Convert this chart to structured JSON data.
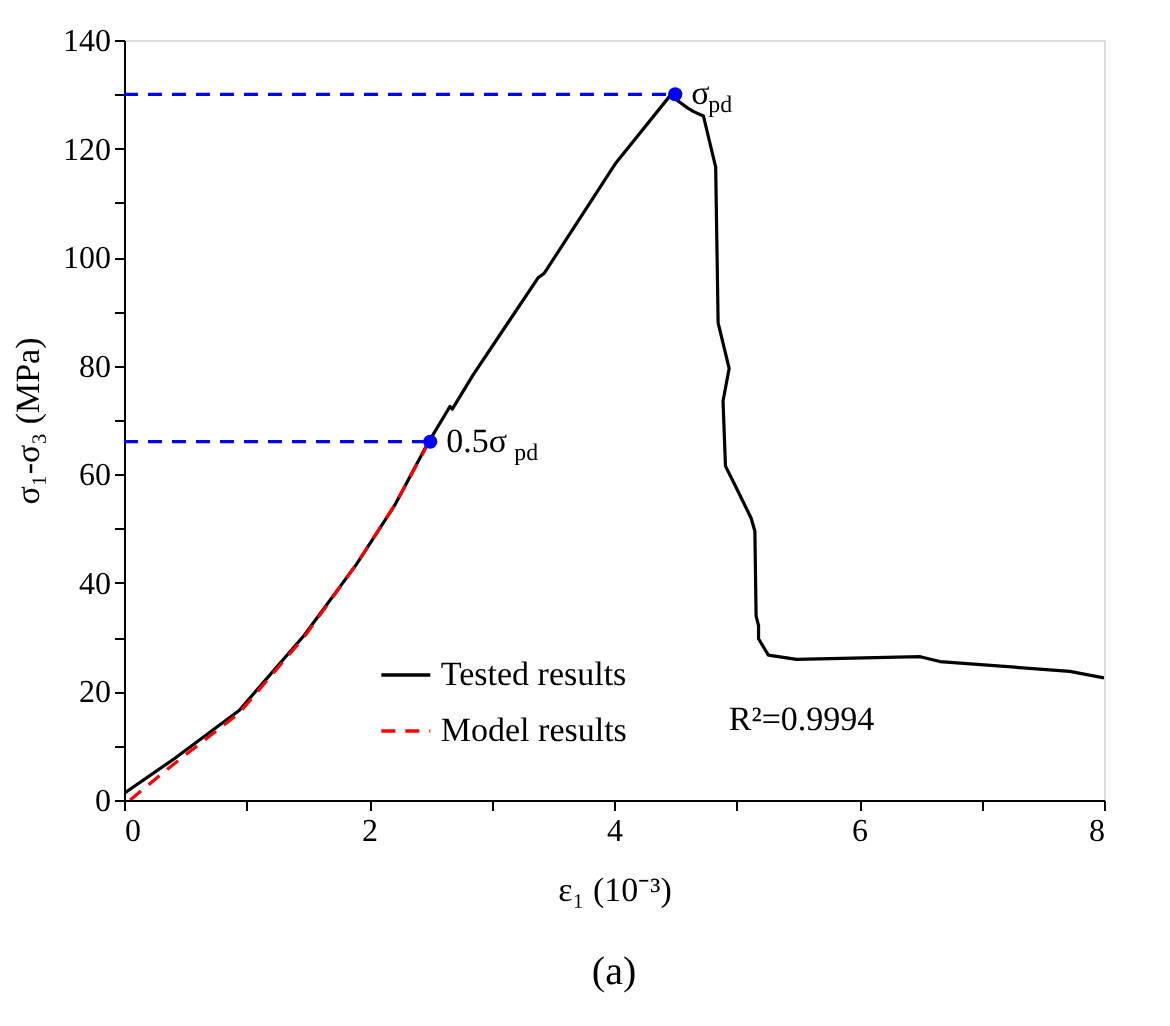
{
  "chart_data": {
    "type": "line",
    "xlabel": "ε₁ (10⁻³)",
    "ylabel": "σ₁-σ₃ (MPa)",
    "xlim": [
      0,
      8
    ],
    "xticks": [
      0,
      {
        "value": 1,
        "label": null
      },
      2,
      {
        "value": 3,
        "label": null
      },
      4,
      {
        "value": 5,
        "label": null
      },
      6,
      {
        "value": 7,
        "label": null
      },
      8
    ],
    "ylim": [
      0,
      140
    ],
    "yticks": [
      0,
      {
        "value": 10,
        "label": null
      },
      20,
      {
        "value": 30,
        "label": null
      },
      40,
      {
        "value": 50,
        "label": null
      },
      60,
      {
        "value": 70,
        "label": null
      },
      80,
      {
        "value": 90,
        "label": null
      },
      100,
      {
        "value": 110,
        "label": null
      },
      120,
      {
        "value": 130,
        "label": null
      },
      140
    ],
    "grid": false,
    "legend": "bottom",
    "series": [
      {
        "name": "Tested results",
        "color": "#000000",
        "line_style": "solid",
        "x": [
          0,
          0.41,
          0.94,
          1.47,
          1.9,
          2.21,
          2.48,
          2.64,
          2.66,
          2.68,
          2.85,
          3.38,
          3.43,
          4.01,
          4.46,
          4.54,
          4.6,
          4.65,
          4.73,
          4.83,
          4.85,
          4.94,
          4.89,
          4.91,
          4.99,
          5.12,
          5.15,
          5.16,
          5.18,
          5.18,
          5.26,
          5.49,
          6.5,
          6.66,
          7.72,
          8.0
        ],
        "values": [
          1.2,
          7.6,
          16.5,
          30.3,
          43.5,
          54.3,
          65.7,
          71.7,
          72.5,
          72.0,
          78.3,
          96.2,
          97.0,
          117.2,
          129.8,
          128.5,
          127.5,
          126.8,
          126.0,
          116.6,
          87.9,
          79.5,
          73.5,
          61.5,
          57.9,
          51.9,
          49.5,
          33.9,
          32.1,
          29.7,
          26.7,
          25.9,
          26.4,
          25.5,
          23.7,
          22.5
        ]
      },
      {
        "name": "Model results",
        "color": "#ff0000",
        "line_style": "dashed",
        "x": [
          0.05,
          0.4,
          0.94,
          1.47,
          1.9,
          2.21,
          2.48
        ],
        "values": [
          0,
          6.5,
          16,
          30,
          43.5,
          54.3,
          65.5
        ]
      },
      {
        "color": "#0000ff",
        "line_style": "dashed",
        "x": [
          0,
          4.5
        ],
        "values": [
          130,
          130
        ]
      },
      {
        "color": "#0000ff",
        "line_style": "dashed",
        "x": [
          0,
          2.5
        ],
        "values": [
          66,
          66
        ]
      },
      {
        "type": "scatter",
        "color": "#0000ff",
        "marker": "circle",
        "x": [
          2.5,
          4.5
        ],
        "values": [
          66,
          130
        ]
      }
    ],
    "annotations": [
      {
        "text": "σ$_{pd}$",
        "x": 4.5,
        "y": 130
      },
      {
        "text": "0.5σ$_{pd}$",
        "x": 2.5,
        "y": 66
      },
      "R²=0.9994",
      "(a)"
    ]
  }
}
